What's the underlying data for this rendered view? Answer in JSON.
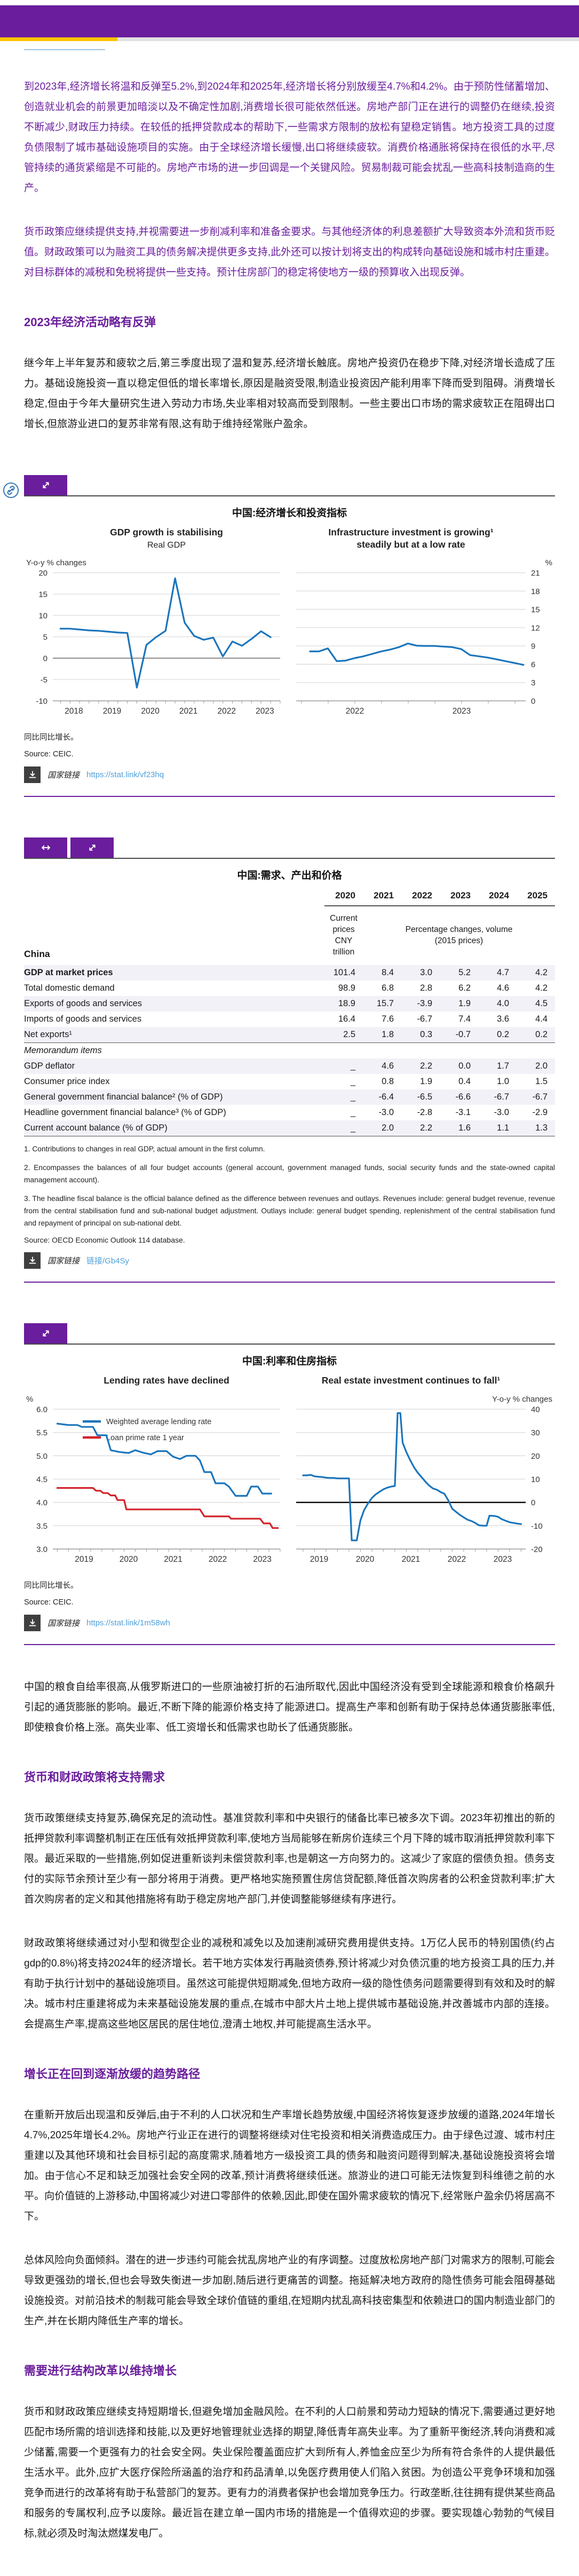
{
  "text": {
    "p1": "到2023年,经济增长将温和反弹至5.2%,到2024年和2025年,经济增长将分别放缓至4.7%和4.2%。由于预防性储蓄增加、创造就业机会的前景更加暗淡以及不确定性加剧,消费增长很可能依然低迷。房地产部门正在进行的调整仍在继续,投资不断减少,财政压力持续。在较低的抵押贷款成本的帮助下,一些需求方限制的放松有望稳定销售。地方投资工具的过度负债限制了城市基础设施项目的实施。由于全球经济增长缓慢,出口将继续疲软。消费价格通胀将保持在很低的水平,尽管持续的通货紧缩是不可能的。房地产市场的进一步回调是一个关键风险。贸易制裁可能会扰乱一些高科技制造商的生产。",
    "p2": "货币政策应继续提供支持,并视需要进一步削减利率和准备金要求。与其他经济体的利息差额扩大导致资本外流和货币贬值。财政政策可以为融资工具的债务解决提供更多支持,此外还可以按计划将支出的构成转向基础设施和城市村庄重建。对目标群体的减税和免税将提供一些支持。预计住房部门的稳定将使地方一级的预算收入出现反弹。",
    "h_activity": "2023年经济活动略有反弹",
    "p3": "继今年上半年复苏和疲软之后,第三季度出现了温和复苏,经济增长触底。房地产投资仍在稳步下降,对经济增长造成了压力。基础设施投资一直以稳定但低的增长率增长,原因是融资受限,制造业投资因产能利用率下降而受到阻碍。消费增长稳定,但由于今年大量研究生进入劳动力市场,失业率相对较高而受到限制。一些主要出口市场的需求疲软正在阻碍出口增长,但旅游业进口的复苏非常有限,这有助于维持经常账户盈余。",
    "p_inflation": "中国的粮食自给率很高,从俄罗斯进口的一些原油被打折的石油所取代,因此中国经济没有受到全球能源和粮食价格飙升引起的通货膨胀的影响。最近,不断下降的能源价格支持了能源进口。提高生产率和创新有助于保持总体通货膨胀率低,即使粮食价格上涨。高失业率、低工资增长和低需求也助长了低通货膨胀。",
    "h_policy": "货币和财政政策将支持需求",
    "p_monetary": "货币政策继续支持复苏,确保充足的流动性。基准贷款利率和中央银行的储备比率已被多次下调。2023年初推出的新的抵押贷款利率调整机制正在压低有效抵押贷款利率,使地方当局能够在新房价连续三个月下降的城市取消抵押贷款利率下限。最近采取的一些措施,例如促进重新谈判未偿贷款利率,也是朝这一方向努力的。这减少了家庭的偿债负担。债务支付的实际节余预计至少有一部分将用于消费。更严格地实施预置住房信贷配额,降低首次购房者的公积金贷款利率;扩大首次购房者的定义和其他措施将有助于稳定房地产部门,并使调整能够继续有序进行。",
    "p_fiscal": "财政政策将继续通过对小型和微型企业的减税和减免以及加速削减研究费用提供支持。1万亿人民币的特别国债(约占gdp的0.8%)将支持2024年的经济增长。若干地方实体发行再融资债券,预计将减少对负债沉重的地方投资工具的压力,并有助于执行计划中的基础设施项目。虽然这可能提供短期减免,但地方政府一级的隐性债务问题需要得到有效和及时的解决。城市村庄重建将成为未来基础设施发展的重点,在城市中部大片土地上提供城市基础设施,并改善城市内部的连接。会提高生产率,提高这些地区居民的居住地位,澄清土地权,并可能提高生活水平。",
    "h_growth": "增长正在回到逐渐放缓的趋势路径",
    "p_outlook": "在重新开放后出现温和反弹后,由于不利的人口状况和生产率增长趋势放缓,中国经济将恢复逐步放缓的道路,2024年增长4.7%,2025年增长4.2%。房地产行业正在进行的调整将继续对住宅投资和相关消费造成压力。由于绿色过渡、城市村庄重建以及其他环境和社会目标引起的高度需求,随着地方一级投资工具的债务和融资问题得到解决,基础设施投资将会增加。由于信心不足和缺乏加强社会安全网的改革,预计消费将继续低迷。旅游业的进口可能无法恢复到科维德之前的水平。向价值链的上游移动,中国将减少对进口零部件的依赖,因此,即使在国外需求疲软的情况下,经常账户盈余仍将居高不下。",
    "p_risks": "总体风险向负面倾斜。潜在的进一步违约可能会扰乱房地产业的有序调整。过度放松房地产部门对需求方的限制,可能会导致更强劲的增长,但也会导致失衡进一步加剧,随后进行更痛苦的调整。拖延解决地方政府的隐性债务可能会阻碍基础设施投资。对前沿技术的制裁可能会导致全球价值链的重组,在短期内扰乱高科技密集型和依赖进口的国内制造业部门的生产,并在长期内降低生产率的增长。",
    "h_structural": "需要进行结构改革以维持增长",
    "p_structural": "货币和财政政策应继续支持短期增长,但避免增加金融风险。在不利的人口前景和劳动力短缺的情况下,需要通过更好地匹配市场所需的培训选择和技能,以及更好地管理就业选择的期望,降低青年高失业率。为了重新平衡经济,转向消费和减少储蓄,需要一个更强有力的社会安全网。失业保险覆盖面应扩大到所有人,养恤金应至少为所有符合条件的人提供最低生活水平。此外,应扩大医疗保险所涵盖的治疗和药品清单,以免医疗费用使人们陷入贫困。为创造公平竞争环境和加强竞争而进行的改革将有助于私营部门的复苏。更有力的消费者保护也会增加竞争压力。行政垄断,往往拥有提供某些商品和服务的专属权利,应予以废除。最近旨在建立单一国内市场的措施是一个值得欢迎的步骤。要实现雄心勃勃的气候目标,就必须及时淘汰燃煤发电厂。"
  },
  "figures": {
    "fig1": {
      "title": "中国:经济增长和投资指标",
      "note": "同比同比增长。",
      "source": "Source: CEIC.",
      "statlink_label": "国家链接",
      "statlink_url": "https://stat.link/vf23hq"
    },
    "fig2": {
      "title": "中国:利率和住房指标",
      "note": "同比同比增长。",
      "source": "Source: CEIC.",
      "statlink_label": "国家链接",
      "statlink_url": "https://stat.link/1m58wh"
    }
  },
  "table": {
    "title": "中国:需求、产出和价格",
    "region_label": "China",
    "years": [
      "2020",
      "2021",
      "2022",
      "2023",
      "2024",
      "2025"
    ],
    "subheader": {
      "first": [
        "Current prices",
        "CNY trillion"
      ],
      "rest": [
        "Percentage changes, volume",
        "(2015 prices)"
      ]
    },
    "rows": [
      {
        "label": "GDP at market prices",
        "style": "bold",
        "indent": 0,
        "shaded": true,
        "values": [
          "101.4",
          "8.4",
          "3.0",
          "5.2",
          "4.7",
          "4.2"
        ]
      },
      {
        "label": "Total domestic demand",
        "indent": 1,
        "shaded": false,
        "values": [
          "98.9",
          "6.8",
          "2.8",
          "6.2",
          "4.6",
          "4.2"
        ]
      },
      {
        "label": "Exports of goods and services",
        "indent": 1,
        "shaded": true,
        "values": [
          "18.9",
          "15.7",
          "-3.9",
          "1.9",
          "4.0",
          "4.5"
        ]
      },
      {
        "label": "Imports of goods and services",
        "indent": 1,
        "shaded": false,
        "values": [
          "16.4",
          "7.6",
          "-6.7",
          "7.4",
          "3.6",
          "4.4"
        ]
      },
      {
        "label": "Net exports¹",
        "indent": 2,
        "shaded": true,
        "border_bottom": true,
        "values": [
          "2.5",
          "1.8",
          "0.3",
          "-0.7",
          "0.2",
          "0.2"
        ]
      },
      {
        "label": "Memorandum items",
        "style": "italic",
        "indent": 0,
        "shaded": false,
        "values": [
          "",
          "",
          "",
          "",
          "",
          ""
        ]
      },
      {
        "label": "GDP deflator",
        "indent": 0,
        "shaded": true,
        "values": [
          "_",
          "4.6",
          "2.2",
          "0.0",
          "1.7",
          "2.0"
        ]
      },
      {
        "label": "Consumer price index",
        "indent": 0,
        "shaded": false,
        "values": [
          "_",
          "0.8",
          "1.9",
          "0.4",
          "1.0",
          "1.5"
        ]
      },
      {
        "label": "General government financial balance² (% of GDP)",
        "indent": 0,
        "shaded": true,
        "values": [
          "_",
          "-6.4",
          "-6.5",
          "-6.6",
          "-6.7",
          "-6.7"
        ]
      },
      {
        "label": "Headline government financial balance³  (% of GDP)",
        "indent": 0,
        "shaded": false,
        "values": [
          "_",
          "-3.0",
          "-2.8",
          "-3.1",
          "-3.0",
          "-2.9"
        ]
      },
      {
        "label": "Current account balance (% of GDP)",
        "indent": 0,
        "shaded": true,
        "border_bottom": true,
        "values": [
          "_",
          "2.0",
          "2.2",
          "1.6",
          "1.1",
          "1.3"
        ]
      }
    ],
    "footnotes": [
      "1. Contributions to changes in real GDP, actual amount in the first column.",
      "2. Encompasses the balances of all four budget accounts (general account, government managed funds, social security funds and the state-owned capital management account).",
      "3. The headline fiscal balance is the official balance defined as the difference between revenues and outlays. Revenues include: general budget revenue, revenue from the central stabilisation fund and sub-national budget adjustment. Outlays include: general budget spending, replenishment of the central stabilisation fund and repayment of principal on sub-national debt."
    ],
    "source": "Source: OECD Economic Outlook 114 database.",
    "statlink_label": "国家链接",
    "statlink_url": "链接/Gb4Sy"
  },
  "colors": {
    "purple": "#6a1d9c",
    "yellow": "#ffc400",
    "link_blue": "#4f9fd9",
    "chart_blue": "#1b75bc",
    "chart_red": "#d2232a"
  },
  "chart_data": [
    {
      "id": "gdp-growth",
      "type": "line",
      "title": "GDP growth is stabilising",
      "subtitle": "Real GDP",
      "axis_label": "Y-o-y % changes",
      "axis_side": "left",
      "ylim": [
        -10,
        20
      ],
      "yticks": [
        20,
        15,
        10,
        5,
        0,
        -5,
        -10
      ],
      "zero": "gray",
      "xlim": [
        2017.8,
        2023.75
      ],
      "xlabels": [
        2018,
        2019,
        2020,
        2021,
        2022,
        2023
      ],
      "xlabel_offset": 0.35,
      "series": [
        {
          "name": "Real GDP y-o-y % change",
          "color": "#1b75bc",
          "x_start": 2018.0,
          "x_step": 0.25,
          "values": [
            6.9,
            6.9,
            6.7,
            6.5,
            6.4,
            6.2,
            6.0,
            5.9,
            -6.9,
            3.1,
            4.9,
            6.4,
            18.7,
            8.3,
            5.2,
            4.3,
            4.8,
            0.4,
            3.9,
            2.9,
            4.5,
            6.3,
            4.9
          ]
        }
      ]
    },
    {
      "id": "infrastructure-investment",
      "type": "line",
      "title": "Infrastructure investment is growing¹",
      "title2": "steadily but at a low rate",
      "axis_label": "%",
      "axis_side": "right",
      "ylim": [
        0,
        21
      ],
      "yticks": [
        21,
        18,
        15,
        12,
        9,
        6,
        3,
        0
      ],
      "xlim": [
        2021.45,
        2023.6
      ],
      "xlabels": [
        2022,
        2023
      ],
      "xlabel_offset": 0,
      "series": [
        {
          "name": "Infrastructure investment growth",
          "color": "#1b75bc",
          "x_start": 2021.58,
          "x_step": 0.0833,
          "values": [
            8.1,
            8.1,
            8.6,
            6.5,
            6.6,
            7.0,
            7.3,
            7.7,
            8.1,
            8.4,
            8.8,
            9.4,
            9.05,
            9.0,
            9.0,
            8.9,
            8.8,
            8.5,
            7.5,
            7.3,
            7.1,
            6.8,
            6.5,
            6.2,
            5.9
          ]
        }
      ]
    },
    {
      "id": "lending-rates",
      "type": "line",
      "title": "Lending rates have declined",
      "axis_label": "%",
      "axis_side": "left",
      "ylim": [
        3,
        6
      ],
      "yticks": [
        6,
        5.5,
        5,
        4.5,
        4,
        3.5,
        3
      ],
      "ylabels": [
        "6.0",
        "5.5",
        "5.0",
        "4.5",
        "4.0",
        "3.5",
        "3.0"
      ],
      "xlim": [
        2018.65,
        2023.75
      ],
      "xlabels": [
        2019,
        2020,
        2021,
        2022,
        2023
      ],
      "xlabel_offset": 0.35,
      "legend": [
        {
          "label": "Weighted average lending rate",
          "color": "#1b75bc"
        },
        {
          "label": "Loan prime rate 1 year",
          "color": "#d2232a"
        }
      ],
      "series": [
        {
          "name": "Weighted average lending rate",
          "color": "#1b75bc",
          "points": [
            [
              2018.75,
              5.69
            ],
            [
              2019.0,
              5.66
            ],
            [
              2019.2,
              5.66
            ],
            [
              2019.3,
              5.62
            ],
            [
              2019.55,
              5.62
            ],
            [
              2019.65,
              5.44
            ],
            [
              2019.85,
              5.44
            ],
            [
              2019.95,
              5.12
            ],
            [
              2020.15,
              5.08
            ],
            [
              2020.35,
              5.06
            ],
            [
              2020.5,
              5.12
            ],
            [
              2020.7,
              5.06
            ],
            [
              2020.85,
              5.03
            ],
            [
              2021.0,
              5.1
            ],
            [
              2021.2,
              5.1
            ],
            [
              2021.35,
              4.98
            ],
            [
              2021.5,
              4.93
            ],
            [
              2021.65,
              5.0
            ],
            [
              2021.85,
              5.0
            ],
            [
              2021.95,
              4.9
            ],
            [
              2022.05,
              4.65
            ],
            [
              2022.2,
              4.65
            ],
            [
              2022.3,
              4.41
            ],
            [
              2022.5,
              4.41
            ],
            [
              2022.6,
              4.34
            ],
            [
              2022.75,
              4.14
            ],
            [
              2023.0,
              4.14
            ],
            [
              2023.1,
              4.34
            ],
            [
              2023.25,
              4.34
            ],
            [
              2023.35,
              4.19
            ],
            [
              2023.55,
              4.19
            ]
          ]
        },
        {
          "name": "Loan prime rate 1 year",
          "color": "#d2232a",
          "points": [
            [
              2018.75,
              4.31
            ],
            [
              2019.55,
              4.31
            ],
            [
              2019.62,
              4.25
            ],
            [
              2019.72,
              4.25
            ],
            [
              2019.78,
              4.2
            ],
            [
              2019.88,
              4.2
            ],
            [
              2019.95,
              4.15
            ],
            [
              2020.05,
              4.15
            ],
            [
              2020.1,
              4.05
            ],
            [
              2020.25,
              4.05
            ],
            [
              2020.3,
              3.85
            ],
            [
              2021.95,
              3.85
            ],
            [
              2022.05,
              3.7
            ],
            [
              2022.6,
              3.7
            ],
            [
              2022.65,
              3.65
            ],
            [
              2023.3,
              3.65
            ],
            [
              2023.38,
              3.55
            ],
            [
              2023.52,
              3.55
            ],
            [
              2023.58,
              3.45
            ],
            [
              2023.7,
              3.45
            ]
          ]
        }
      ]
    },
    {
      "id": "real-estate-investment",
      "type": "line",
      "title": "Real estate investment continues to fall¹",
      "axis_label": "Y-o-y % changes",
      "axis_side": "right",
      "ylim": [
        -20,
        40
      ],
      "yticks": [
        40,
        30,
        20,
        10,
        0,
        -10,
        -20
      ],
      "zero": "black",
      "xlim": [
        2018.85,
        2023.85
      ],
      "xlabels": [
        2019,
        2020,
        2021,
        2022,
        2023
      ],
      "xlabel_offset": 0.35,
      "series": [
        {
          "name": "Real estate investment growth",
          "color": "#1b75bc",
          "points": [
            [
              2019.0,
              11.6
            ],
            [
              2019.08,
              11.6
            ],
            [
              2019.17,
              11.8
            ],
            [
              2019.25,
              11.2
            ],
            [
              2019.33,
              11.0
            ],
            [
              2019.42,
              10.9
            ],
            [
              2019.5,
              10.6
            ],
            [
              2019.58,
              10.5
            ],
            [
              2019.67,
              10.5
            ],
            [
              2019.75,
              10.3
            ],
            [
              2019.83,
              10.3
            ],
            [
              2019.92,
              10.3
            ],
            [
              2020.0,
              10.3
            ],
            [
              2020.06,
              -16.3
            ],
            [
              2020.17,
              -16.3
            ],
            [
              2020.25,
              -7.7
            ],
            [
              2020.33,
              -3.3
            ],
            [
              2020.42,
              -0.3
            ],
            [
              2020.5,
              1.9
            ],
            [
              2020.58,
              3.4
            ],
            [
              2020.67,
              4.6
            ],
            [
              2020.75,
              5.6
            ],
            [
              2020.83,
              6.3
            ],
            [
              2020.92,
              6.8
            ],
            [
              2021.0,
              7.0
            ],
            [
              2021.06,
              38.3
            ],
            [
              2021.12,
              38.3
            ],
            [
              2021.17,
              25.6
            ],
            [
              2021.25,
              21.6
            ],
            [
              2021.33,
              18.3
            ],
            [
              2021.42,
              15.0
            ],
            [
              2021.5,
              12.7
            ],
            [
              2021.58,
              10.9
            ],
            [
              2021.67,
              8.8
            ],
            [
              2021.75,
              7.2
            ],
            [
              2021.83,
              6.0
            ],
            [
              2021.92,
              5.4
            ],
            [
              2022.0,
              4.4
            ],
            [
              2022.08,
              3.7
            ],
            [
              2022.17,
              0.7
            ],
            [
              2022.25,
              -2.7
            ],
            [
              2022.33,
              -4.0
            ],
            [
              2022.42,
              -5.4
            ],
            [
              2022.5,
              -6.4
            ],
            [
              2022.58,
              -7.4
            ],
            [
              2022.67,
              -8.0
            ],
            [
              2022.75,
              -8.8
            ],
            [
              2022.83,
              -9.8
            ],
            [
              2022.92,
              -10.0
            ],
            [
              2023.0,
              -10.0
            ],
            [
              2023.06,
              -5.7
            ],
            [
              2023.17,
              -5.8
            ],
            [
              2023.25,
              -6.2
            ],
            [
              2023.33,
              -7.2
            ],
            [
              2023.42,
              -7.9
            ],
            [
              2023.5,
              -8.5
            ],
            [
              2023.58,
              -8.8
            ],
            [
              2023.67,
              -9.1
            ],
            [
              2023.75,
              -9.3
            ]
          ]
        }
      ]
    }
  ]
}
